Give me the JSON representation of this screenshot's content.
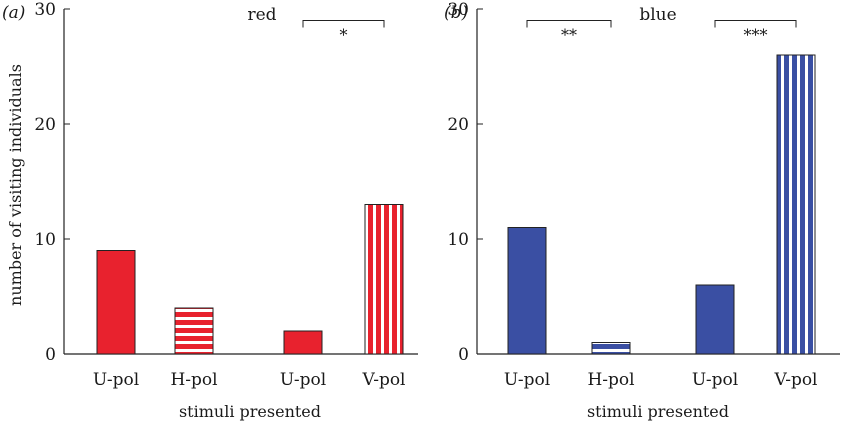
{
  "chart_data": [
    {
      "type": "bar",
      "panel_label": "(a)",
      "title": "red",
      "ylabel": "number of visiting individuals",
      "xlabel": "stimuli presented",
      "ylim": [
        0,
        30
      ],
      "yticks": [
        "0",
        "10",
        "20",
        "30"
      ],
      "categories": [
        "U-pol",
        "H-pol",
        "U-pol",
        "V-pol"
      ],
      "values": [
        9,
        4,
        2,
        13
      ],
      "patterns": [
        "solid",
        "horizontal-stripes",
        "solid",
        "vertical-stripes"
      ],
      "color": "#e8222e",
      "significance": [
        {
          "from": 2,
          "to": 3,
          "label": "*",
          "y": 29
        }
      ]
    },
    {
      "type": "bar",
      "panel_label": "(b)",
      "title": "blue",
      "ylabel": "",
      "xlabel": "stimuli presented",
      "ylim": [
        0,
        30
      ],
      "yticks": [
        "0",
        "10",
        "20",
        "30"
      ],
      "categories": [
        "U-pol",
        "H-pol",
        "U-pol",
        "V-pol"
      ],
      "values": [
        11,
        1,
        6,
        26
      ],
      "patterns": [
        "solid",
        "horizontal-stripes",
        "solid",
        "vertical-stripes"
      ],
      "color": "#3a4fa3",
      "significance": [
        {
          "from": 0,
          "to": 1,
          "label": "**",
          "y": 29
        },
        {
          "from": 2,
          "to": 3,
          "label": "***",
          "y": 29
        }
      ]
    }
  ]
}
